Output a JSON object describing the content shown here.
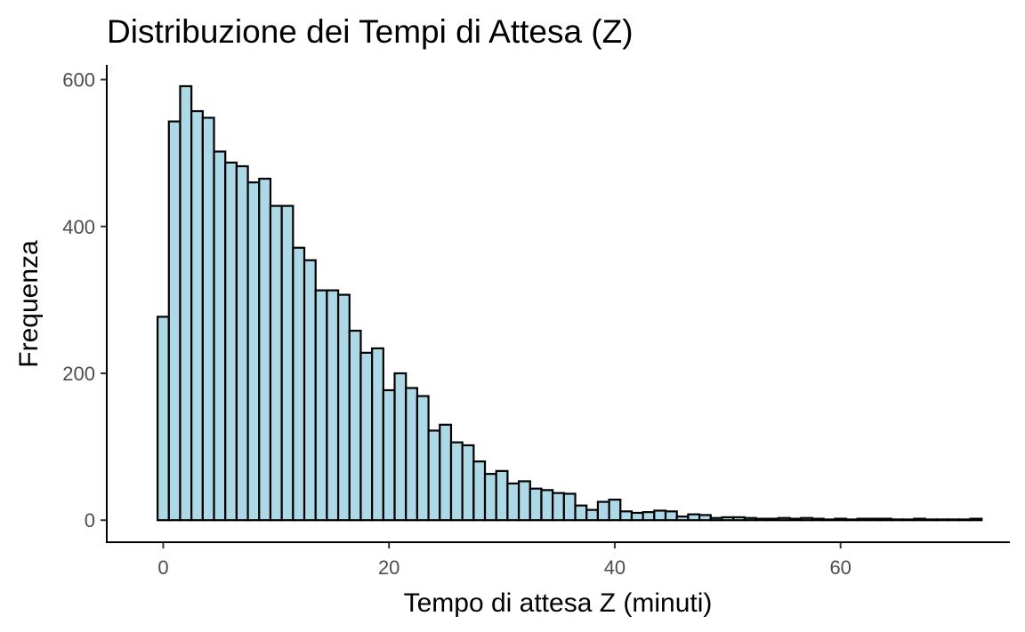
{
  "chart_data": {
    "type": "bar",
    "subtype": "histogram",
    "title": "Distribuzione dei Tempi di Attesa (Z)",
    "xlabel": "Tempo di attesa Z (minuti)",
    "ylabel": "Frequenza",
    "xlim": [
      -5,
      75
    ],
    "ylim": [
      -30,
      620
    ],
    "xticks": [
      0,
      20,
      40,
      60
    ],
    "yticks": [
      0,
      200,
      400,
      600
    ],
    "bin_start": -0.5,
    "bin_width": 1,
    "grid": false,
    "legend": "none",
    "bar_fill": "#add8e6",
    "bar_outline": "#000000",
    "values": [
      277,
      543,
      591,
      557,
      548,
      502,
      487,
      482,
      460,
      465,
      428,
      428,
      371,
      354,
      313,
      313,
      307,
      258,
      228,
      234,
      177,
      200,
      180,
      169,
      122,
      130,
      106,
      102,
      80,
      63,
      67,
      50,
      53,
      43,
      41,
      37,
      36,
      20,
      14,
      25,
      28,
      12,
      10,
      11,
      13,
      12,
      5,
      8,
      7,
      3,
      4,
      4,
      3,
      2,
      2,
      3,
      2,
      3,
      2,
      1,
      2,
      1,
      2,
      2,
      2,
      1,
      1,
      2,
      1,
      1,
      1,
      1,
      2
    ]
  }
}
